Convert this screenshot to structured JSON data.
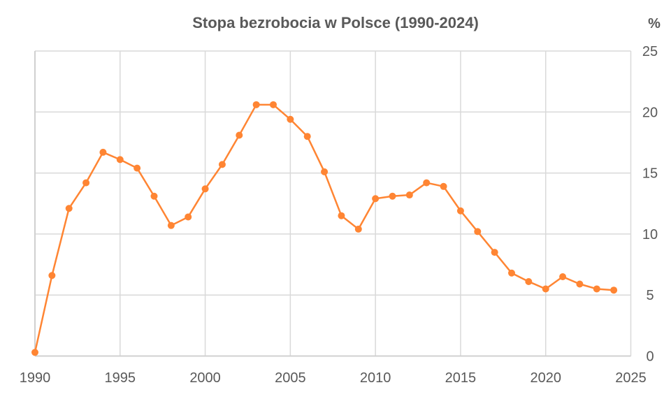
{
  "chart_data": {
    "type": "line",
    "title": "Stopa bezrobocia w Polsce (1990-2024)",
    "ylabel": "%",
    "xlabel": "",
    "xlim": [
      1990,
      2025
    ],
    "ylim": [
      0,
      25
    ],
    "x_ticks": [
      1990,
      1995,
      2000,
      2005,
      2010,
      2015,
      2020,
      2025
    ],
    "y_ticks": [
      0,
      5,
      10,
      15,
      20,
      25
    ],
    "y_axis_side": "right",
    "grid": true,
    "legend": "none",
    "series": [
      {
        "color": "#FF8533",
        "marker": "circle",
        "x": [
          1990,
          1991,
          1992,
          1993,
          1994,
          1995,
          1996,
          1997,
          1998,
          1999,
          2000,
          2001,
          2002,
          2003,
          2004,
          2005,
          2006,
          2007,
          2008,
          2009,
          2010,
          2011,
          2012,
          2013,
          2014,
          2015,
          2016,
          2017,
          2018,
          2019,
          2020,
          2021,
          2022,
          2023,
          2024
        ],
        "values": [
          0.3,
          6.6,
          12.1,
          14.2,
          16.7,
          16.1,
          15.4,
          13.1,
          10.7,
          11.4,
          13.7,
          15.7,
          18.1,
          20.6,
          20.6,
          19.4,
          18.0,
          15.1,
          11.5,
          10.4,
          12.9,
          13.1,
          13.2,
          14.2,
          13.9,
          11.9,
          10.2,
          8.5,
          6.8,
          6.1,
          5.5,
          6.5,
          5.9,
          5.5,
          5.4
        ]
      }
    ]
  }
}
